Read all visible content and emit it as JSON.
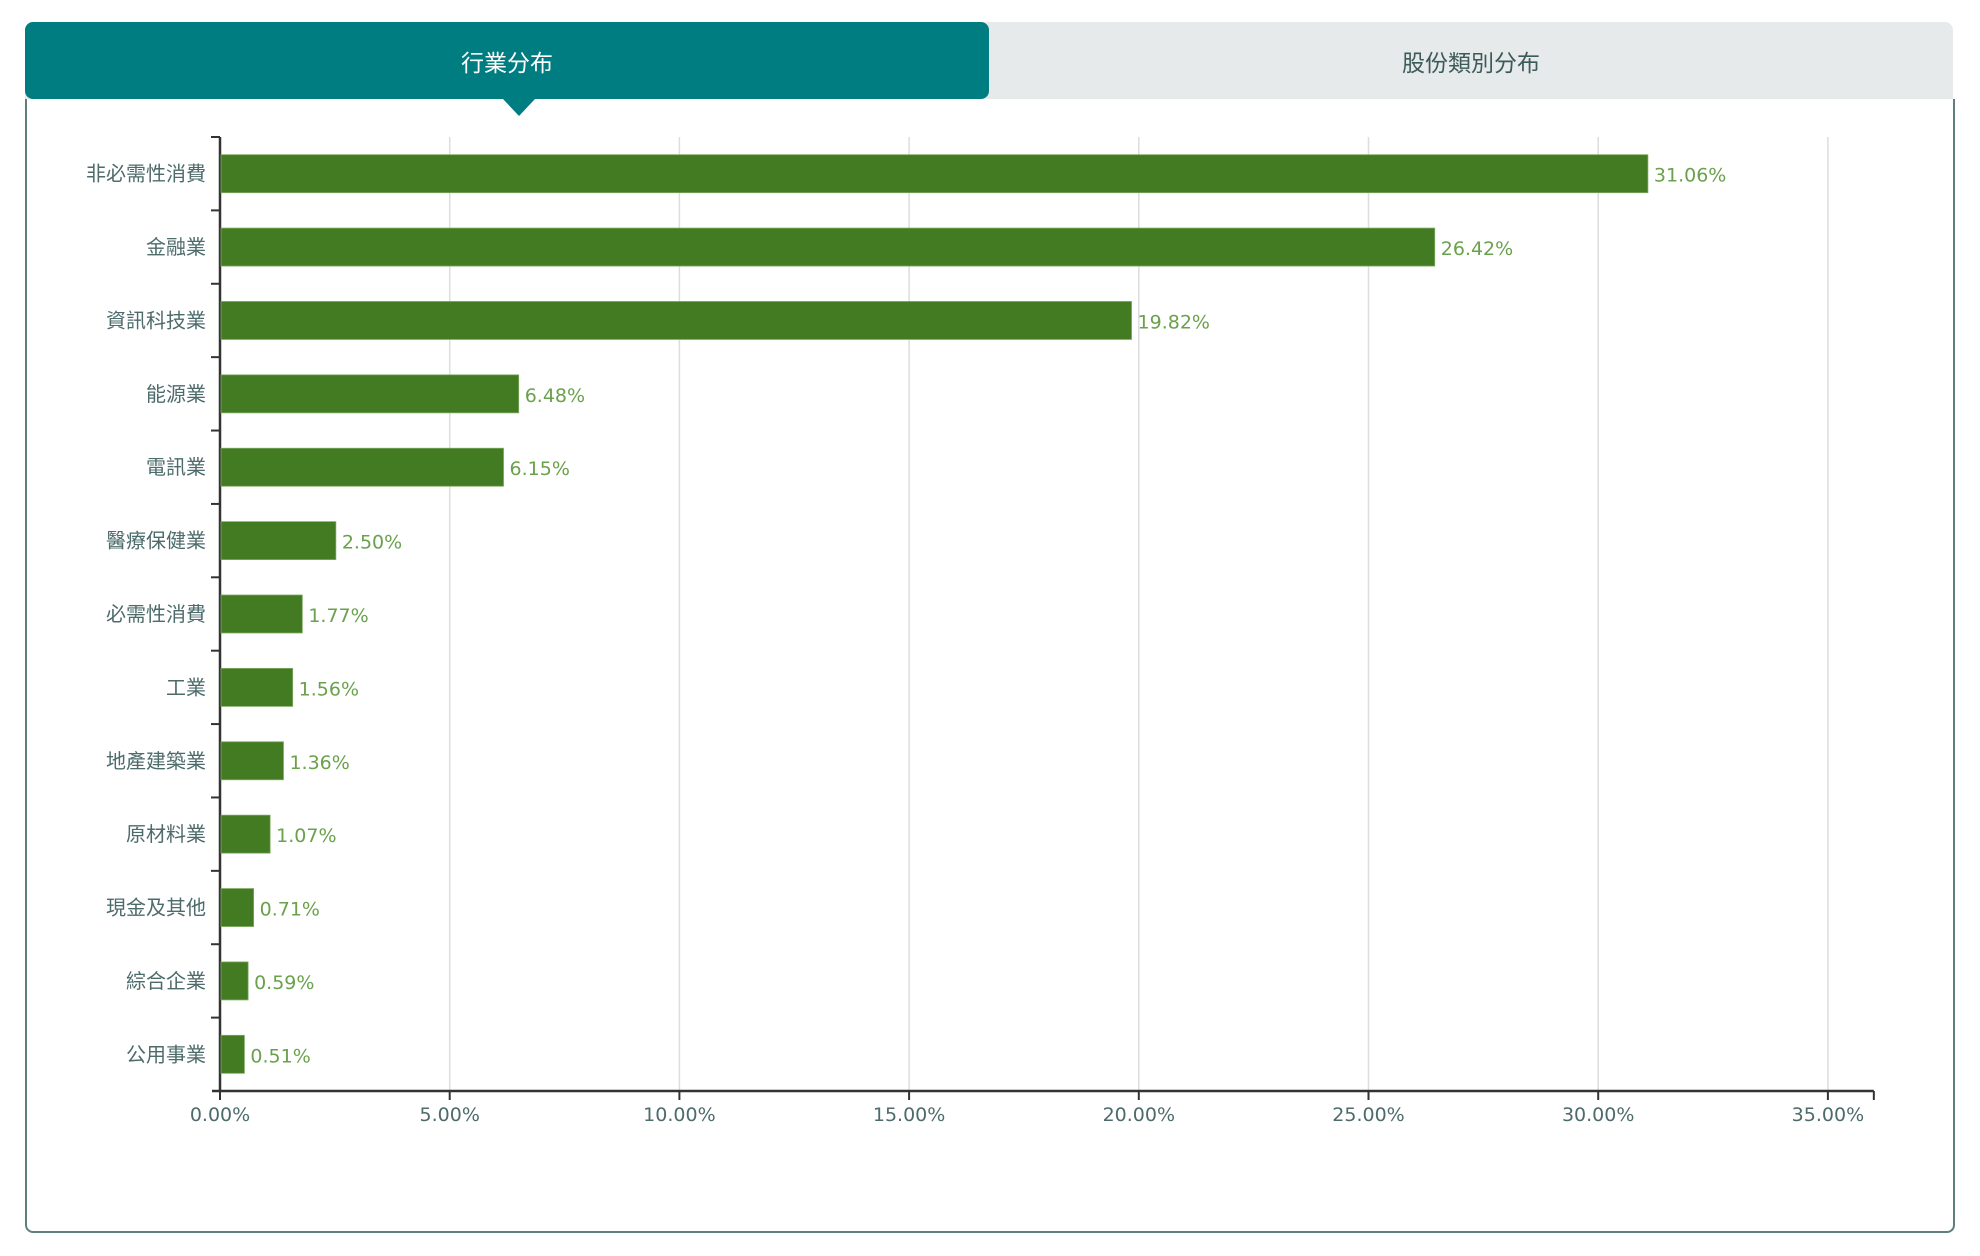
{
  "tabs": [
    {
      "label": "行業分布",
      "active": true
    },
    {
      "label": "股份類別分布",
      "active": false
    }
  ],
  "colors": {
    "tab_active_bg": "#007d80",
    "tab_inactive_bg": "#e6eaeb",
    "bar": "#427b21",
    "value_label": "#6aa14c",
    "axis_label": "#4e6b6b",
    "gridline": "#dddddd",
    "axis": "#333333"
  },
  "chart_data": {
    "type": "bar",
    "orientation": "horizontal",
    "title": "",
    "xlabel": "",
    "ylabel": "",
    "categories": [
      "非必需性消費",
      "金融業",
      "資訊科技業",
      "能源業",
      "電訊業",
      "醫療保健業",
      "必需性消費",
      "工業",
      "地產建築業",
      "原材料業",
      "現金及其他",
      "綜合企業",
      "公用事業"
    ],
    "values": [
      31.06,
      26.42,
      19.82,
      6.48,
      6.15,
      2.5,
      1.77,
      1.56,
      1.36,
      1.07,
      0.71,
      0.59,
      0.51
    ],
    "value_labels": [
      "31.06%",
      "26.42%",
      "19.82%",
      "6.48%",
      "6.15%",
      "2.50%",
      "1.77%",
      "1.56%",
      "1.36%",
      "1.07%",
      "0.71%",
      "0.59%",
      "0.51%"
    ],
    "xlim": [
      0,
      36
    ],
    "xticks": [
      0,
      5,
      10,
      15,
      20,
      25,
      30,
      35
    ],
    "xtick_labels": [
      "0.00%",
      "5.00%",
      "10.00%",
      "15.00%",
      "20.00%",
      "25.00%",
      "30.00%",
      "35.00%"
    ],
    "grid": "vertical",
    "legend": "none"
  }
}
